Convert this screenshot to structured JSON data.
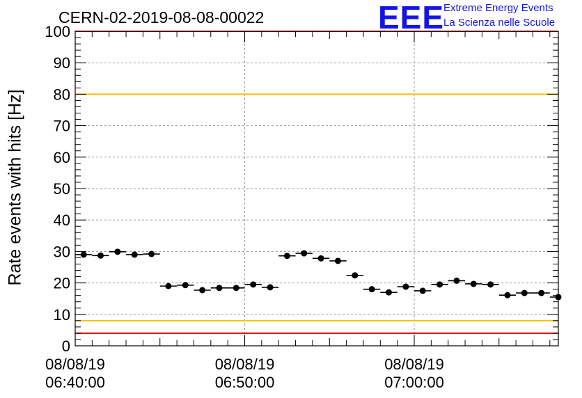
{
  "chart_data": {
    "type": "scatter",
    "title": "CERN-02-2019-08-08-00022",
    "ylabel": "Rate events with hits [Hz]",
    "xlabel": "",
    "ylim": [
      0,
      100
    ],
    "xlim": [
      "06:40:00",
      "07:08:30"
    ],
    "y_ticks": [
      "0",
      "10",
      "20",
      "30",
      "40",
      "50",
      "60",
      "70",
      "80",
      "90",
      "100"
    ],
    "x_ticks": [
      {
        "date": "08/08/19",
        "time": "06:40:00"
      },
      {
        "date": "08/08/19",
        "time": "06:50:00"
      },
      {
        "date": "08/08/19",
        "time": "07:00:00"
      }
    ],
    "grid": true,
    "reference_lines": [
      {
        "y": 80,
        "color": "#f2c200"
      },
      {
        "y": 8,
        "color": "#f2c200"
      },
      {
        "y": 100,
        "color": "#e00000"
      },
      {
        "y": 4,
        "color": "#e00000"
      }
    ],
    "series": [
      {
        "x": [
          "06:40:30",
          "06:41:30",
          "06:42:30",
          "06:43:30",
          "06:44:30",
          "06:45:30",
          "06:46:30",
          "06:47:30",
          "06:48:30",
          "06:49:30",
          "06:50:30",
          "06:51:30",
          "06:52:30",
          "06:53:30",
          "06:54:30",
          "06:55:30",
          "06:56:30",
          "06:57:30",
          "06:58:30",
          "06:59:30",
          "07:00:30",
          "07:01:30",
          "07:02:30",
          "07:03:30",
          "07:04:30",
          "07:05:30",
          "07:06:30",
          "07:07:30",
          "07:08:30"
        ],
        "y": [
          29.0,
          28.7,
          29.9,
          29.0,
          29.2,
          19.0,
          19.3,
          17.7,
          18.4,
          18.4,
          19.5,
          18.6,
          28.6,
          29.4,
          27.8,
          27.0,
          22.4,
          18.0,
          17.0,
          18.8,
          17.5,
          19.5,
          20.7,
          19.7,
          19.5,
          16.1,
          16.8,
          16.8,
          15.5
        ],
        "x_error_seconds": 30,
        "color": "#000000"
      }
    ]
  },
  "logo": {
    "mark": "EEE",
    "line1": "Extreme Energy Events",
    "line2": "La Scienza nelle Scuole",
    "color": "#1414e6"
  }
}
